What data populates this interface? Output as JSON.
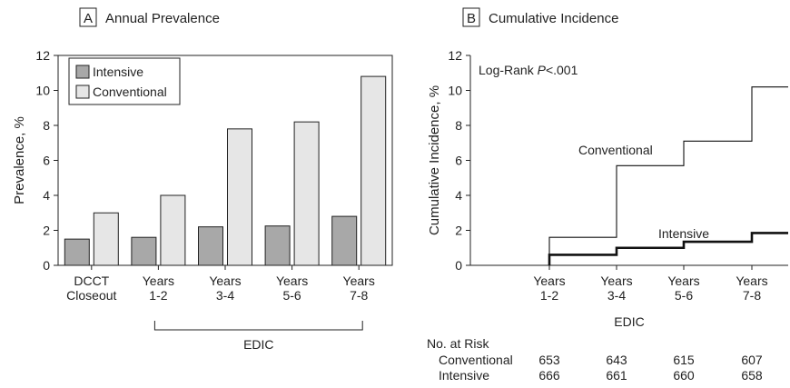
{
  "panel_a": {
    "letter": "A",
    "chart_data": {
      "type": "bar",
      "title": "Annual Prevalence",
      "ylabel": "Prevalence, %",
      "ylim": [
        0,
        12
      ],
      "yticks": [
        0,
        2,
        4,
        6,
        8,
        10,
        12
      ],
      "categories": [
        "DCCT Closeout",
        "Years 1-2",
        "Years 3-4",
        "Years 5-6",
        "Years 7-8"
      ],
      "category_lines": [
        [
          "DCCT",
          "Closeout"
        ],
        [
          "Years",
          "1-2"
        ],
        [
          "Years",
          "3-4"
        ],
        [
          "Years",
          "5-6"
        ],
        [
          "Years",
          "7-8"
        ]
      ],
      "series": [
        {
          "name": "Intensive",
          "values": [
            1.5,
            1.6,
            2.2,
            2.25,
            2.8
          ],
          "color": "#a8a8a8"
        },
        {
          "name": "Conventional",
          "values": [
            3.0,
            4.0,
            7.8,
            8.2,
            10.8
          ],
          "color": "#e6e6e6"
        }
      ],
      "legend_position": "top-left",
      "bracket_label": "EDIC"
    }
  },
  "panel_b": {
    "letter": "B",
    "chart_data": {
      "type": "line",
      "title": "Cumulative Incidence",
      "ylabel": "Cumulative Incidence, %",
      "xlabel": "EDIC",
      "ylim": [
        0,
        12
      ],
      "yticks": [
        0,
        2,
        4,
        6,
        8,
        10,
        12
      ],
      "xticks": [
        "Years 1-2",
        "Years 3-4",
        "Years 5-6",
        "Years 7-8"
      ],
      "xtick_lines": [
        [
          "Years",
          "1-2"
        ],
        [
          "Years",
          "3-4"
        ],
        [
          "Years",
          "5-6"
        ],
        [
          "Years",
          "7-8"
        ]
      ],
      "annotation_prefix": "Log-Rank ",
      "annotation_p": "P",
      "annotation_suffix": "<.001",
      "series": [
        {
          "name": "Conventional",
          "steps": [
            1.6,
            5.7,
            7.1,
            10.2
          ],
          "weight": "thin"
        },
        {
          "name": "Intensive",
          "steps": [
            0.6,
            1.0,
            1.35,
            1.85
          ],
          "weight": "thick"
        }
      ],
      "risk_table": {
        "header": "No. at Risk",
        "rows": [
          {
            "label": "Conventional",
            "values": [
              653,
              643,
              615,
              607
            ]
          },
          {
            "label": "Intensive",
            "values": [
              666,
              661,
              660,
              658
            ]
          }
        ]
      }
    }
  }
}
